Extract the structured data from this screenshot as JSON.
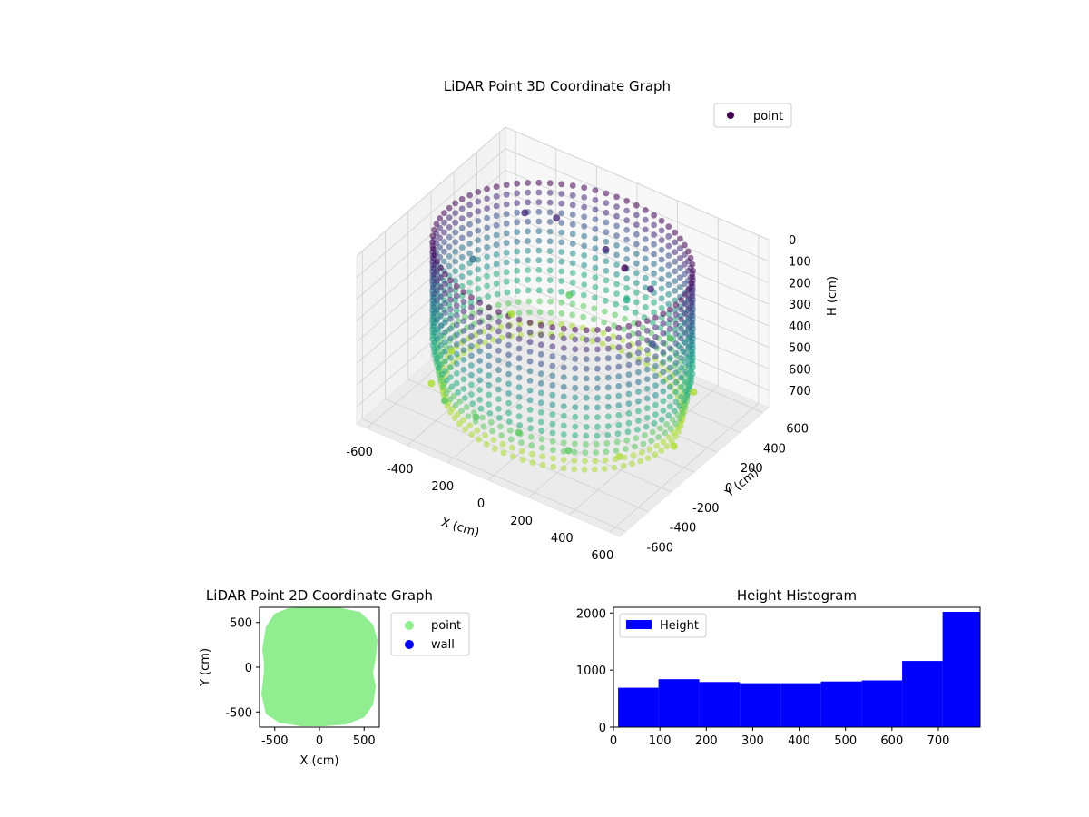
{
  "chart_data": [
    {
      "type": "scatter",
      "projection": "3d",
      "title": "LiDAR Point 3D Coordinate Graph",
      "xlabel": "X (cm)",
      "ylabel": "Y (cm)",
      "zlabel": "H (cm)",
      "xlim": [
        -650,
        650
      ],
      "ylim": [
        -650,
        650
      ],
      "zlim": [
        0,
        780
      ],
      "z_inverted": true,
      "xticks": [
        -600,
        -400,
        -200,
        0,
        200,
        400,
        600
      ],
      "yticks": [
        -600,
        -400,
        -200,
        0,
        200,
        400,
        600
      ],
      "zticks": [
        0,
        100,
        200,
        300,
        400,
        500,
        600,
        700
      ],
      "colormap": "viridis",
      "grid": true,
      "legend_position": "upper-right",
      "series": [
        {
          "name": "point",
          "color": "#440154",
          "description_points": [
            {
              "x": -550,
              "y": 0,
              "h": 700
            },
            {
              "x": -450,
              "y": -350,
              "h": 650
            },
            {
              "x": -300,
              "y": -500,
              "h": 600
            },
            {
              "x": -100,
              "y": -580,
              "h": 560
            },
            {
              "x": 100,
              "y": -560,
              "h": 560
            },
            {
              "x": 300,
              "y": -480,
              "h": 600
            },
            {
              "x": 450,
              "y": -300,
              "h": 650
            },
            {
              "x": 550,
              "y": 0,
              "h": 700
            },
            {
              "x": 450,
              "y": 350,
              "h": 650
            },
            {
              "x": 250,
              "y": 500,
              "h": 550
            },
            {
              "x": 0,
              "y": 560,
              "h": 500
            },
            {
              "x": -250,
              "y": 500,
              "h": 550
            },
            {
              "x": -450,
              "y": 350,
              "h": 650
            },
            {
              "x": -300,
              "y": 200,
              "h": 50
            },
            {
              "x": -200,
              "y": 300,
              "h": 80
            },
            {
              "x": 100,
              "y": 200,
              "h": 60
            },
            {
              "x": 250,
              "y": 100,
              "h": 40
            },
            {
              "x": 350,
              "y": 150,
              "h": 120
            },
            {
              "x": 500,
              "y": -100,
              "h": 200
            },
            {
              "x": -500,
              "y": 100,
              "h": 300
            }
          ]
        }
      ]
    },
    {
      "type": "scatter",
      "title": "LiDAR Point 2D Coordinate Graph",
      "xlabel": "X (cm)",
      "ylabel": "Y (cm)",
      "xlim": [
        -670,
        670
      ],
      "ylim": [
        -670,
        670
      ],
      "xticks": [
        -500,
        0,
        500
      ],
      "yticks": [
        -500,
        0,
        500
      ],
      "legend_position": "outside-right",
      "series": [
        {
          "name": "point",
          "color": "#90ee90",
          "outline": [
            [
              -620,
              -50
            ],
            [
              -650,
              -300
            ],
            [
              -600,
              -520
            ],
            [
              -450,
              -620
            ],
            [
              -200,
              -660
            ],
            [
              50,
              -660
            ],
            [
              300,
              -640
            ],
            [
              500,
              -560
            ],
            [
              600,
              -420
            ],
            [
              630,
              -220
            ],
            [
              600,
              -60
            ],
            [
              630,
              100
            ],
            [
              650,
              300
            ],
            [
              600,
              480
            ],
            [
              450,
              620
            ],
            [
              200,
              670
            ],
            [
              -100,
              670
            ],
            [
              -350,
              660
            ],
            [
              -500,
              600
            ],
            [
              -600,
              450
            ],
            [
              -640,
              200
            ],
            [
              -620,
              50
            ]
          ]
        },
        {
          "name": "wall",
          "color": "#0000ff",
          "values": []
        }
      ]
    },
    {
      "type": "bar",
      "subtype": "histogram",
      "title": "Height Histogram",
      "xlim": [
        0,
        790
      ],
      "ylim": [
        0,
        2100
      ],
      "xticks": [
        0,
        100,
        200,
        300,
        400,
        500,
        600,
        700
      ],
      "yticks": [
        0,
        1000,
        2000
      ],
      "legend_position": "upper-left",
      "series": [
        {
          "name": "Height",
          "color": "#0000ff",
          "bins": [
            {
              "start": 10,
              "end": 97,
              "count": 690
            },
            {
              "start": 97,
              "end": 185,
              "count": 840
            },
            {
              "start": 185,
              "end": 272,
              "count": 790
            },
            {
              "start": 272,
              "end": 360,
              "count": 770
            },
            {
              "start": 360,
              "end": 447,
              "count": 770
            },
            {
              "start": 447,
              "end": 535,
              "count": 800
            },
            {
              "start": 535,
              "end": 622,
              "count": 820
            },
            {
              "start": 622,
              "end": 709,
              "count": 1160
            },
            {
              "start": 709,
              "end": 790,
              "count": 2020
            }
          ]
        }
      ]
    }
  ]
}
